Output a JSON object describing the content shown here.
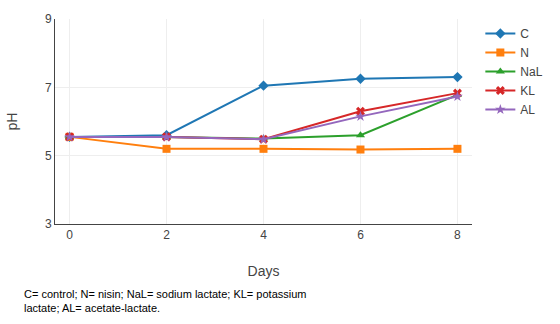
{
  "chart_data": {
    "type": "line",
    "x": [
      0,
      2,
      4,
      6,
      8
    ],
    "series": [
      {
        "name": "C",
        "values": [
          5.55,
          5.6,
          7.05,
          7.25,
          7.3
        ],
        "marker": "diamond"
      },
      {
        "name": "N",
        "values": [
          5.55,
          5.2,
          5.2,
          5.18,
          5.2
        ],
        "marker": "square"
      },
      {
        "name": "NaL",
        "values": [
          5.55,
          5.55,
          5.5,
          5.6,
          6.78
        ],
        "marker": "triangle-up"
      },
      {
        "name": "KL",
        "values": [
          5.55,
          5.55,
          5.48,
          6.3,
          6.83
        ],
        "marker": "x"
      },
      {
        "name": "AL",
        "values": [
          5.55,
          5.55,
          5.48,
          6.15,
          6.73
        ],
        "marker": "star"
      }
    ],
    "xlim": [
      -0.3,
      8.3
    ],
    "xticks": [
      0,
      2,
      4,
      6,
      8
    ],
    "ylim": [
      3,
      9
    ],
    "yticks": [
      3,
      5,
      7,
      9
    ],
    "xlabel": "Days",
    "ylabel": "pH",
    "annotations": [
      "C= control; N= nisin; NaL= sodium lactate; KL= potassium\nlactate; AL= acetate-lactate."
    ],
    "grid": true,
    "legend": "right"
  }
}
